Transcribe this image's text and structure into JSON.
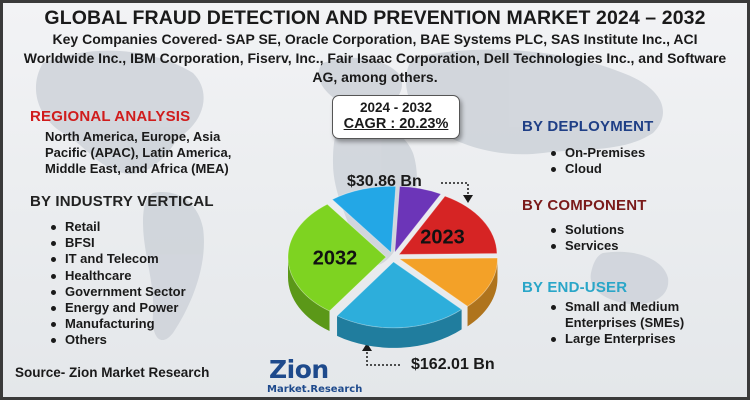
{
  "title": "GLOBAL FRAUD DETECTION AND PREVENTION MARKET 2024 – 2032",
  "subtitle": "Key Companies Covered- SAP SE, Oracle Corporation, BAE Systems PLC, SAS Institute Inc., ACI Worldwide Inc., IBM Corporation, Fiserv, Inc., Fair Isaac Corporation, Dell Technologies Inc., and Software AG, among others.",
  "regional": {
    "heading": "REGIONAL ANALYSIS",
    "text": "North America, Europe, Asia Pacific (APAC), Latin America, Middle East, and Africa (MEA)"
  },
  "industry": {
    "heading": "BY INDUSTRY VERTICAL",
    "items": [
      "Retail",
      "BFSI",
      "IT and Telecom",
      "Healthcare",
      "Government Sector",
      "Energy and Power",
      "Manufacturing",
      "Others"
    ]
  },
  "cagr": {
    "years": "2024 - 2032",
    "value": "CAGR : 20.23%"
  },
  "values": {
    "start": "$30.86 Bn",
    "end": "$162.01 Bn"
  },
  "chart_data": {
    "type": "pie",
    "labels": [
      "2023",
      "",
      "",
      "2032",
      "",
      ""
    ],
    "values": [
      17,
      13,
      22,
      30,
      11,
      7
    ],
    "colors": [
      "#d62424",
      "#f3a128",
      "#2daedb",
      "#7ed321",
      "#23a7e6",
      "#6c35b8"
    ]
  },
  "deployment": {
    "heading": "BY DEPLOYMENT",
    "items": [
      "On-Premises",
      "Cloud"
    ]
  },
  "component": {
    "heading": "BY COMPONENT",
    "items": [
      "Solutions",
      "Services"
    ]
  },
  "enduser": {
    "heading": "BY END-USER",
    "items": [
      "Small and Medium Enterprises (SMEs)",
      "Large Enterprises"
    ]
  },
  "source": "Source- Zion Market Research",
  "logo": {
    "brand": "Zion",
    "sub": "Market.Research"
  }
}
